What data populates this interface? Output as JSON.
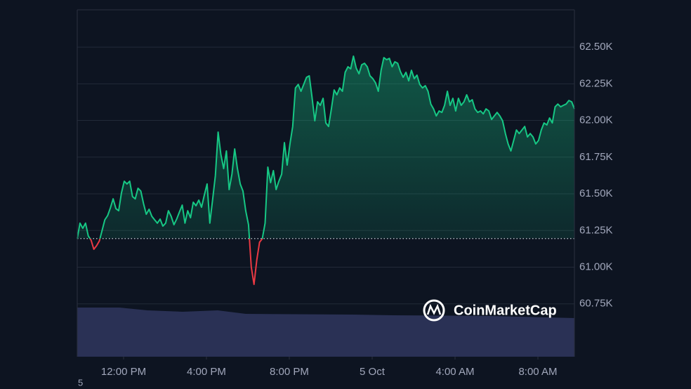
{
  "chart_data": {
    "type": "line",
    "watermark": "CoinMarketCap",
    "footnote": "5",
    "color": "#16c784",
    "down_color": "#ea3943",
    "baseline": 61195,
    "xlim": [
      9.763,
      33.763
    ],
    "xticks": [
      {
        "value": 12,
        "label": "12:00 PM"
      },
      {
        "value": 16,
        "label": "4:00 PM"
      },
      {
        "value": 20,
        "label": "8:00 PM"
      },
      {
        "value": 24,
        "label": "5 Oct"
      },
      {
        "value": 28,
        "label": "4:00 AM"
      },
      {
        "value": 32,
        "label": "8:00 AM"
      }
    ],
    "ylim": [
      60390,
      62754
    ],
    "yticks": [
      {
        "value": 60750,
        "label": "60.75K"
      },
      {
        "value": 61000,
        "label": "61.00K"
      },
      {
        "value": 61250,
        "label": "61.25K"
      },
      {
        "value": 61500,
        "label": "61.50K"
      },
      {
        "value": 61750,
        "label": "61.75K"
      },
      {
        "value": 62000,
        "label": "62.00K"
      },
      {
        "value": 62250,
        "label": "62.25K"
      },
      {
        "value": 62500,
        "label": "62.50K"
      }
    ],
    "grid": true,
    "values": [
      61195,
      61300,
      61265,
      61300,
      61213,
      61184,
      61122,
      61146,
      61179,
      61251,
      61323,
      61352,
      61404,
      61466,
      61399,
      61385,
      61505,
      61586,
      61567,
      61586,
      61481,
      61466,
      61538,
      61519,
      61433,
      61361,
      61395,
      61347,
      61323,
      61300,
      61328,
      61280,
      61300,
      61385,
      61347,
      61289,
      61328,
      61376,
      61423,
      61300,
      61385,
      61337,
      61443,
      61419,
      61457,
      61409,
      61490,
      61567,
      61300,
      61457,
      61624,
      61921,
      61768,
      61672,
      61792,
      61529,
      61634,
      61806,
      61672,
      61567,
      61519,
      61385,
      61289,
      61002,
      60883,
      61050,
      61170,
      61194,
      61300,
      61682,
      61576,
      61658,
      61529,
      61586,
      61634,
      61849,
      61696,
      61840,
      61959,
      62222,
      62246,
      62199,
      62246,
      62294,
      62304,
      62160,
      61998,
      62127,
      62103,
      62151,
      61983,
      61959,
      62079,
      62208,
      62175,
      62222,
      62199,
      62328,
      62366,
      62352,
      62438,
      62356,
      62318,
      62380,
      62390,
      62366,
      62304,
      62285,
      62256,
      62199,
      62342,
      62428,
      62414,
      62423,
      62366,
      62400,
      62390,
      62333,
      62294,
      62328,
      62270,
      62342,
      62285,
      62309,
      62246,
      62222,
      62237,
      62199,
      62112,
      62079,
      62031,
      62065,
      62055,
      62103,
      62199,
      62103,
      62151,
      62065,
      62151,
      62103,
      62127,
      62175,
      62127,
      62141,
      62079,
      62055,
      62065,
      62045,
      62079,
      62065,
      62007,
      62031,
      62055,
      62031,
      61998,
      61911,
      61840,
      61792,
      61864,
      61935,
      61911,
      61935,
      61959,
      61888,
      61911,
      61888,
      61840,
      61864,
      61935,
      61983,
      61969,
      62017,
      61983,
      62093,
      62112,
      62093,
      62103,
      62112,
      62136,
      62127,
      62079
    ]
  }
}
